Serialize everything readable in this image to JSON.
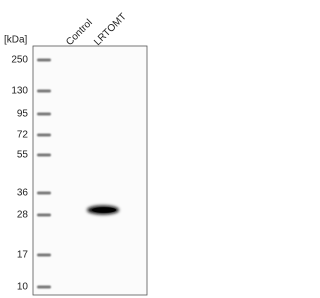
{
  "kda_label": "[kDa]",
  "lanes": [
    "Control",
    "LRTOMT"
  ],
  "markers": [
    "250",
    "130",
    "95",
    "72",
    "55",
    "36",
    "28",
    "17",
    "10"
  ]
}
